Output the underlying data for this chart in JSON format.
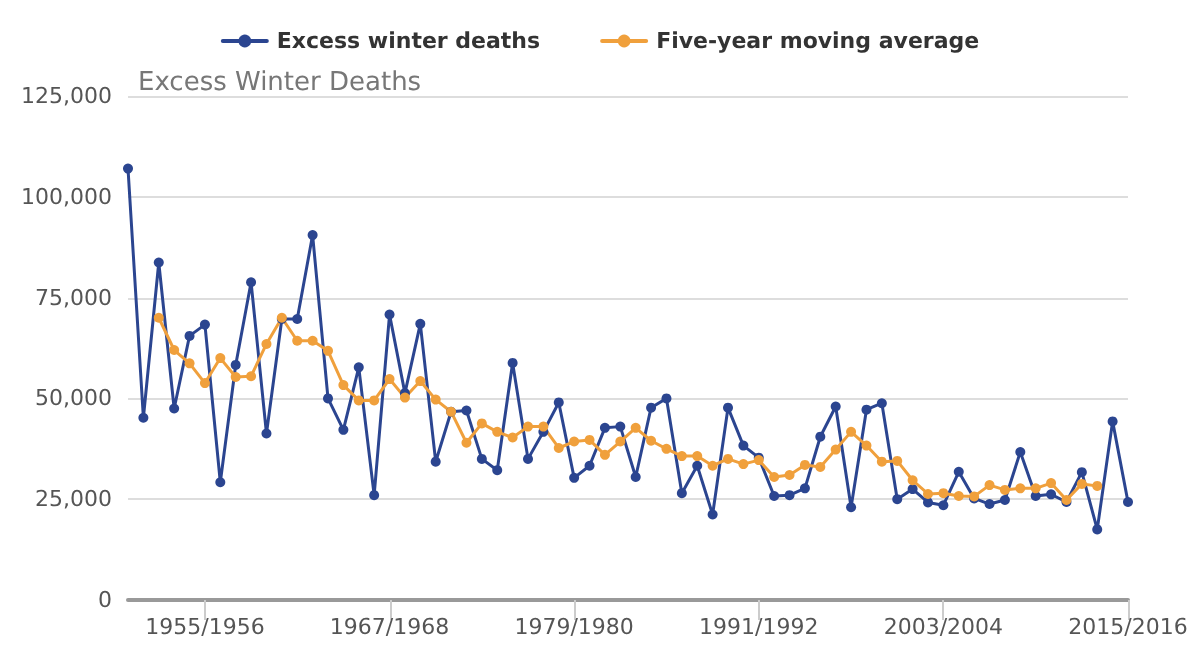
{
  "chart_data": {
    "type": "line",
    "title": "Excess Winter Deaths",
    "categories": [
      null,
      null,
      null,
      null,
      null,
      "1955/1956",
      null,
      null,
      null,
      null,
      null,
      null,
      null,
      null,
      null,
      null,
      null,
      "1967/1968",
      null,
      null,
      null,
      null,
      null,
      null,
      null,
      null,
      null,
      null,
      null,
      "1979/1980",
      null,
      null,
      null,
      null,
      null,
      null,
      null,
      null,
      null,
      null,
      null,
      "1991/1992",
      null,
      null,
      null,
      null,
      null,
      null,
      null,
      null,
      null,
      null,
      null,
      "2003/2004",
      null,
      null,
      null,
      null,
      null,
      null,
      null,
      null,
      null,
      null,
      null,
      "2015/2016"
    ],
    "series": [
      {
        "name": "Excess winter deaths",
        "color": "#2b4590",
        "values": [
          107000,
          45200,
          83700,
          47500,
          65500,
          68300,
          29200,
          58300,
          78800,
          41300,
          69700,
          69700,
          90500,
          50000,
          42200,
          57700,
          26000,
          70800,
          51300,
          68500,
          34300,
          46700,
          47000,
          35000,
          32200,
          58800,
          35000,
          41700,
          49000,
          30300,
          33300,
          42700,
          43000,
          30500,
          47700,
          50000,
          26500,
          33300,
          21200,
          47700,
          38300,
          35300,
          25800,
          26000,
          27700,
          40500,
          48000,
          23000,
          47200,
          48800,
          25000,
          27500,
          24200,
          23500,
          31800,
          25200,
          23800,
          24800,
          36700,
          25800,
          26200,
          24300,
          31700,
          17500,
          44300,
          24300
        ]
      },
      {
        "name": "Five-year moving average",
        "color": "#f0a03c",
        "values": [
          null,
          null,
          70000,
          62000,
          58700,
          53800,
          60000,
          55300,
          55500,
          63500,
          70000,
          64300,
          64300,
          61800,
          53300,
          49500,
          49500,
          54800,
          50200,
          54300,
          49700,
          46700,
          39000,
          43800,
          41700,
          40300,
          43000,
          43000,
          37700,
          39300,
          39700,
          36000,
          39300,
          42700,
          39500,
          37500,
          35700,
          35700,
          33300,
          35000,
          33700,
          34700,
          30500,
          31000,
          33500,
          33000,
          37300,
          41700,
          38300,
          34300,
          34500,
          29700,
          26300,
          26500,
          25800,
          25700,
          28500,
          27300,
          27700,
          27700,
          29000,
          24800,
          28800,
          28300,
          null,
          null
        ]
      }
    ],
    "ylim": [
      0,
      125000
    ],
    "yticks": [
      0,
      {
        "value": 25000,
        "label": "25,000"
      },
      {
        "value": 50000,
        "label": "50,000"
      },
      {
        "value": 75000,
        "label": "75,000"
      },
      {
        "value": 100000,
        "label": "100,000"
      },
      {
        "value": 125000,
        "label": "125,000"
      }
    ],
    "grid": "y",
    "legend": "top",
    "marker": "circle",
    "line_style": "solid"
  }
}
